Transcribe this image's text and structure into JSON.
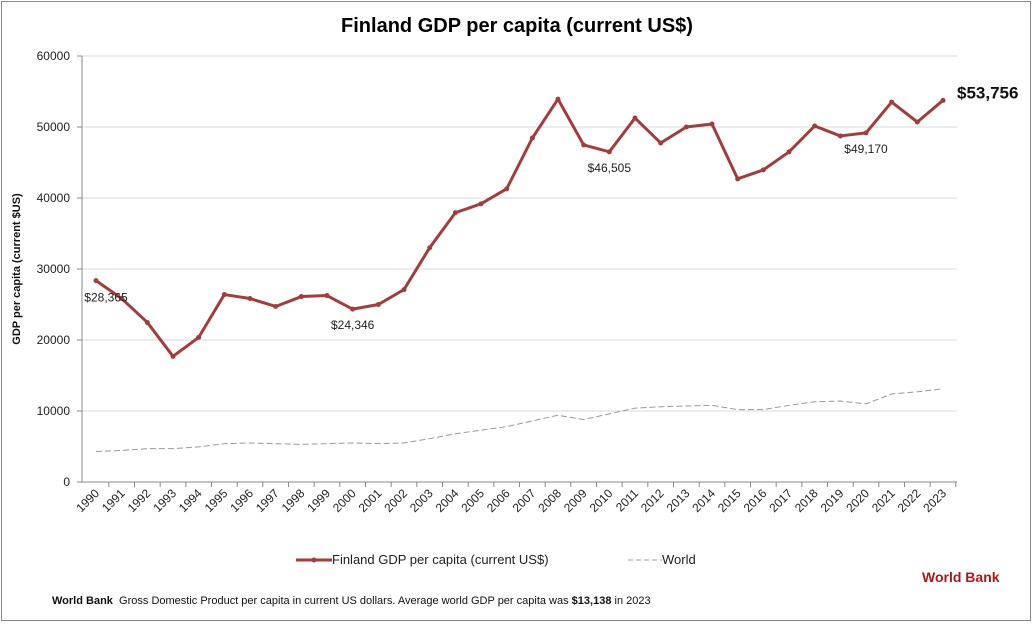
{
  "chart_data": {
    "type": "line",
    "title": "Finland GDP per capita (current US$)",
    "ylabel": "GDP per capita (current $US)",
    "xlabel": "",
    "ylim": [
      0,
      60000
    ],
    "yticks": [
      "0",
      "10000",
      "20000",
      "30000",
      "40000",
      "50000",
      "60000"
    ],
    "grid": true,
    "legend_position": "bottom",
    "x": [
      "1990",
      "1991",
      "1992",
      "1993",
      "1994",
      "1995",
      "1996",
      "1997",
      "1998",
      "1999",
      "2000",
      "2001",
      "2002",
      "2003",
      "2004",
      "2005",
      "2006",
      "2007",
      "2008",
      "2009",
      "2010",
      "2011",
      "2012",
      "2013",
      "2014",
      "2015",
      "2016",
      "2017",
      "2018",
      "2019",
      "2020",
      "2021",
      "2022",
      "2023"
    ],
    "series": [
      {
        "name": "Finland GDP per capita (current US$)",
        "color": "#a33d3d",
        "style": "solid",
        "values": [
          28365,
          25840,
          22470,
          17700,
          20365,
          26400,
          25840,
          24720,
          26120,
          26260,
          24346,
          25000,
          27100,
          33000,
          37920,
          39180,
          41290,
          48450,
          53930,
          47470,
          46505,
          51260,
          47750,
          50000,
          50420,
          42700,
          43960,
          46490,
          50140,
          48740,
          49170,
          53510,
          50700,
          53756
        ]
      },
      {
        "name": "World",
        "color": "#999999",
        "style": "dashed",
        "values": [
          4300,
          4450,
          4700,
          4700,
          4950,
          5400,
          5500,
          5400,
          5300,
          5400,
          5500,
          5400,
          5500,
          6100,
          6800,
          7300,
          7800,
          8600,
          9400,
          8800,
          9600,
          10400,
          10600,
          10700,
          10800,
          10200,
          10200,
          10800,
          11300,
          11400,
          11000,
          12400,
          12700,
          13138
        ]
      }
    ],
    "annotations": [
      {
        "year": "1990",
        "text": "$28,365"
      },
      {
        "year": "2000",
        "text": "$24,346"
      },
      {
        "year": "2010",
        "text": "$46,505"
      },
      {
        "year": "2020",
        "text": "$49,170"
      },
      {
        "year": "2023",
        "text": "$53,756",
        "emphasis": true
      }
    ]
  },
  "source_label": "World Bank",
  "footer": {
    "source": "World Bank",
    "text": "Gross Domestic Product per capita in current US dollars.  Average world GDP per capita was ",
    "value": "$13,138",
    "suffix": " in 2023"
  }
}
